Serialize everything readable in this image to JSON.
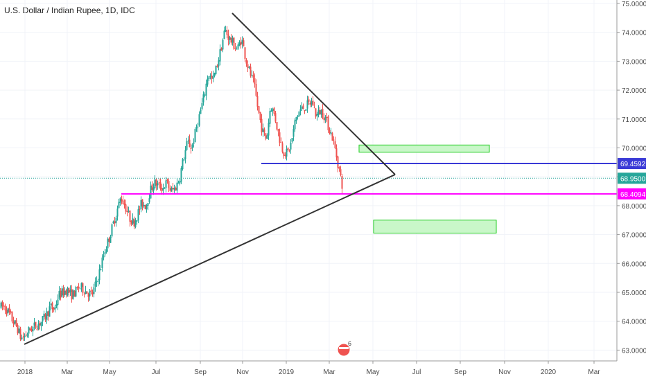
{
  "title": "U.S. Dollar / Indian Rupee, 1D, IDC",
  "colors": {
    "up": "#26a69a",
    "down": "#ef5350",
    "trendline": "#333333",
    "support_line": "#ff00ff",
    "resistance_line": "#3a3ad6",
    "last_price": "#26a69a",
    "zone_fill": "#c9f7c9",
    "zone_border": "#22cc22"
  },
  "chart_data": {
    "type": "candlestick",
    "title": "U.S. Dollar / Indian Rupee, 1D, IDC",
    "ylim": [
      62.9,
      75.1
    ],
    "y_ticks": [
      "63.0000",
      "64.0000",
      "65.0000",
      "66.0000",
      "67.0000",
      "68.0000",
      "69.0000",
      "70.0000",
      "71.0000",
      "72.0000",
      "73.0000",
      "74.0000",
      "75.0000"
    ],
    "x_ticks": [
      "2018",
      "Mar",
      "May",
      "Jul",
      "Sep",
      "Nov",
      "2019",
      "Mar",
      "May",
      "Jul",
      "Sep",
      "Nov",
      "2020",
      "Mar"
    ],
    "price_path": [
      [
        0,
        64.5
      ],
      [
        6,
        64.5
      ],
      [
        12,
        64.3
      ],
      [
        18,
        64.0
      ],
      [
        24,
        63.8
      ],
      [
        30,
        63.4
      ],
      [
        36,
        63.5
      ],
      [
        42,
        63.7
      ],
      [
        48,
        63.8
      ],
      [
        54,
        63.9
      ],
      [
        60,
        64.0
      ],
      [
        66,
        64.2
      ],
      [
        72,
        64.5
      ],
      [
        78,
        64.4
      ],
      [
        84,
        64.9
      ],
      [
        90,
        65.0
      ],
      [
        96,
        65.1
      ],
      [
        102,
        64.9
      ],
      [
        108,
        65.0
      ],
      [
        114,
        65.2
      ],
      [
        120,
        65.1
      ],
      [
        126,
        65.0
      ],
      [
        132,
        64.9
      ],
      [
        138,
        65.3
      ],
      [
        144,
        65.8
      ],
      [
        150,
        66.4
      ],
      [
        156,
        66.8
      ],
      [
        162,
        67.3
      ],
      [
        168,
        67.8
      ],
      [
        174,
        68.3
      ],
      [
        180,
        68.0
      ],
      [
        186,
        67.6
      ],
      [
        192,
        67.4
      ],
      [
        198,
        67.7
      ],
      [
        204,
        68.1
      ],
      [
        210,
        68.0
      ],
      [
        216,
        68.5
      ],
      [
        222,
        68.8
      ],
      [
        228,
        68.7
      ],
      [
        234,
        68.6
      ],
      [
        240,
        68.8
      ],
      [
        246,
        68.5
      ],
      [
        252,
        68.6
      ],
      [
        258,
        68.9
      ],
      [
        264,
        69.6
      ],
      [
        270,
        70.2
      ],
      [
        276,
        70.0
      ],
      [
        282,
        70.6
      ],
      [
        288,
        71.2
      ],
      [
        294,
        71.8
      ],
      [
        300,
        72.6
      ],
      [
        306,
        72.3
      ],
      [
        312,
        72.8
      ],
      [
        318,
        73.4
      ],
      [
        324,
        74.1
      ],
      [
        330,
        73.8
      ],
      [
        336,
        73.6
      ],
      [
        342,
        73.4
      ],
      [
        348,
        73.8
      ],
      [
        354,
        73.1
      ],
      [
        360,
        72.6
      ],
      [
        366,
        72.2
      ],
      [
        372,
        71.3
      ],
      [
        378,
        70.6
      ],
      [
        384,
        70.3
      ],
      [
        390,
        71.5
      ],
      [
        396,
        71.1
      ],
      [
        402,
        70.4
      ],
      [
        408,
        69.9
      ],
      [
        414,
        69.8
      ],
      [
        420,
        70.2
      ],
      [
        426,
        71.0
      ],
      [
        432,
        71.3
      ],
      [
        438,
        71.4
      ],
      [
        444,
        71.5
      ],
      [
        450,
        71.6
      ],
      [
        456,
        71.1
      ],
      [
        462,
        71.3
      ],
      [
        468,
        71.1
      ],
      [
        474,
        70.7
      ],
      [
        480,
        70.3
      ],
      [
        486,
        69.6
      ],
      [
        490,
        69.1
      ],
      [
        494,
        68.6
      ]
    ],
    "trendlines": [
      {
        "from": [
          "2018",
          63.1
        ],
        "to": [
          "2019-Apr",
          69.0
        ]
      },
      {
        "from": [
          "Oct-2018",
          74.7
        ],
        "to": [
          "2019-Apr",
          69.0
        ]
      }
    ],
    "levels": [
      {
        "value": 69.4592,
        "label": "69.4592",
        "color": "#3a3ad6",
        "from_x": "Dec-2018"
      },
      {
        "value": 68.4094,
        "label": "68.4094",
        "color": "#ff00ff",
        "from_x": "May-2018"
      }
    ],
    "last_price": {
      "value": 68.95,
      "label": "68.9500"
    },
    "zones": [
      {
        "y_top": 70.1,
        "y_bottom": 69.85,
        "from_x": "Apr-2019",
        "to_x": "Oct-2019"
      },
      {
        "y_top": 67.5,
        "y_bottom": 67.05,
        "from_x": "May-2019",
        "to_x": "Oct-2019"
      }
    ],
    "badge": "6",
    "grid": true
  }
}
